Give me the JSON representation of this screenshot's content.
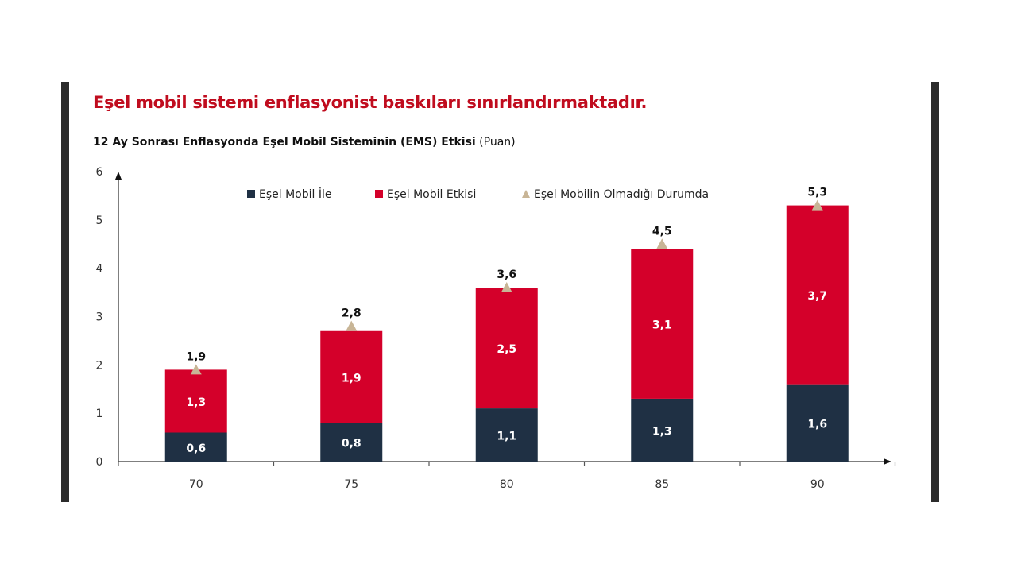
{
  "title": "Eşel mobil sistemi enflasyonist baskıları sınırlandırmaktadır.",
  "subtitle_bold": "12 Ay Sonrası Enflasyonda Eşel Mobil Sisteminin (EMS) Etkisi",
  "subtitle_unit": "(Puan)",
  "chart_data": {
    "type": "bar",
    "stacked": true,
    "categories": [
      "70",
      "75",
      "80",
      "85",
      "90"
    ],
    "series": [
      {
        "name": "Eşel Mobil İle",
        "values": [
          0.6,
          0.8,
          1.1,
          1.3,
          1.6
        ],
        "color": "#1f3044",
        "labels": [
          "0,6",
          "0,8",
          "1,1",
          "1,3",
          "1,6"
        ]
      },
      {
        "name": "Eşel Mobil Etkisi",
        "values": [
          1.3,
          1.9,
          2.5,
          3.1,
          3.7
        ],
        "color": "#d4002a",
        "labels": [
          "1,3",
          "1,9",
          "2,5",
          "3,1",
          "3,7"
        ]
      },
      {
        "name": "Eşel Mobilin Olmadığı Durumda",
        "type": "marker-triangle",
        "values": [
          1.9,
          2.8,
          3.6,
          4.5,
          5.3
        ],
        "color": "#c8b596",
        "labels": [
          "1,9",
          "2,8",
          "3,6",
          "4,5",
          "5,3"
        ]
      }
    ],
    "ylim": [
      0,
      6
    ],
    "yticks": [
      "0",
      "1",
      "2",
      "3",
      "4",
      "5",
      "6"
    ],
    "grid": false,
    "legend": "top"
  }
}
